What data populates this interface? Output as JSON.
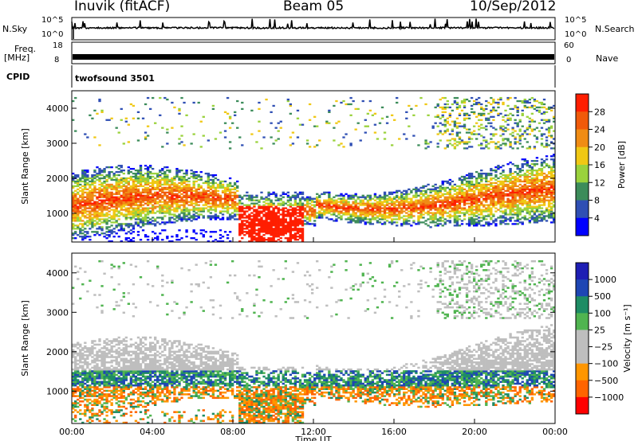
{
  "header": {
    "station": "Inuvik (fitACF)",
    "beam": "Beam 05",
    "date": "10/Sep/2012"
  },
  "top_panels": {
    "nsky_label": "N.Sky",
    "nsearch_label": "N.Search",
    "freq_label": "Freq.",
    "freq_unit": "[MHz]",
    "nave_label": "Nave",
    "cpid_label": "CPID",
    "cpid_value": "twofsound 3501",
    "noise_ticks": [
      "10^5",
      "10^0"
    ],
    "freq_ticks": [
      "18",
      "8"
    ],
    "nave_ticks": [
      "60",
      "0"
    ]
  },
  "colors": {
    "power_scale": [
      "#0000ff",
      "#2f4fb4",
      "#3c8c5a",
      "#9ad23c",
      "#f0c814",
      "#f08c14",
      "#f05a0a",
      "#ff1e00"
    ],
    "velocity_scale": [
      "#ff0000",
      "#ff6400",
      "#ff9600",
      "#bebebe",
      "#bebebe",
      "#50b450",
      "#1e8c64",
      "#1e46b4",
      "#1e1eb4"
    ]
  },
  "chart_data": [
    {
      "type": "line",
      "title": "",
      "series": [
        {
          "name": "N.Sky",
          "values": [
            1,
            1,
            1
          ]
        },
        {
          "name": "N.Search",
          "values": [
            1,
            1,
            1
          ]
        }
      ],
      "ylabel": "N.Sky",
      "y2label": "N.Search",
      "y_ticks": [
        "10^5",
        "10^0"
      ],
      "x_range": [
        "00:00",
        "24:00"
      ]
    },
    {
      "type": "line",
      "series": [
        {
          "name": "Freq. [MHz]",
          "values": [
            10.5,
            10.5,
            10.5
          ]
        },
        {
          "name": "Nave",
          "values": [
            20,
            20,
            20
          ]
        }
      ],
      "ylim": [
        8,
        18
      ],
      "y2lim": [
        0,
        60
      ],
      "x_range": [
        "00:00",
        "24:00"
      ]
    },
    {
      "type": "heatmap",
      "parameter": "Power",
      "ylabel": "Slant Range [km]",
      "colorbar_label": "Power [dB]",
      "colorbar_ticks": [
        "4",
        "8",
        "12",
        "16",
        "20",
        "24",
        "28"
      ],
      "ylim": [
        180,
        4500
      ],
      "yticks": [
        1000,
        2000,
        3000,
        4000
      ],
      "xticks": [
        "00:00",
        "04:00",
        "08:00",
        "12:00",
        "16:00",
        "20:00",
        "00:00"
      ]
    },
    {
      "type": "heatmap",
      "parameter": "Velocity",
      "ylabel": "Slant Range [km]",
      "xlabel": "Time UT",
      "colorbar_label": "Velocity [m s⁻¹]",
      "colorbar_ticks": [
        "1000",
        "500",
        "100",
        "25",
        "−25",
        "−100",
        "−500",
        "−1000"
      ],
      "ylim": [
        180,
        4500
      ],
      "yticks": [
        1000,
        2000,
        3000,
        4000
      ],
      "xticks": [
        "00:00",
        "04:00",
        "08:00",
        "12:00",
        "16:00",
        "20:00",
        "00:00"
      ]
    }
  ]
}
